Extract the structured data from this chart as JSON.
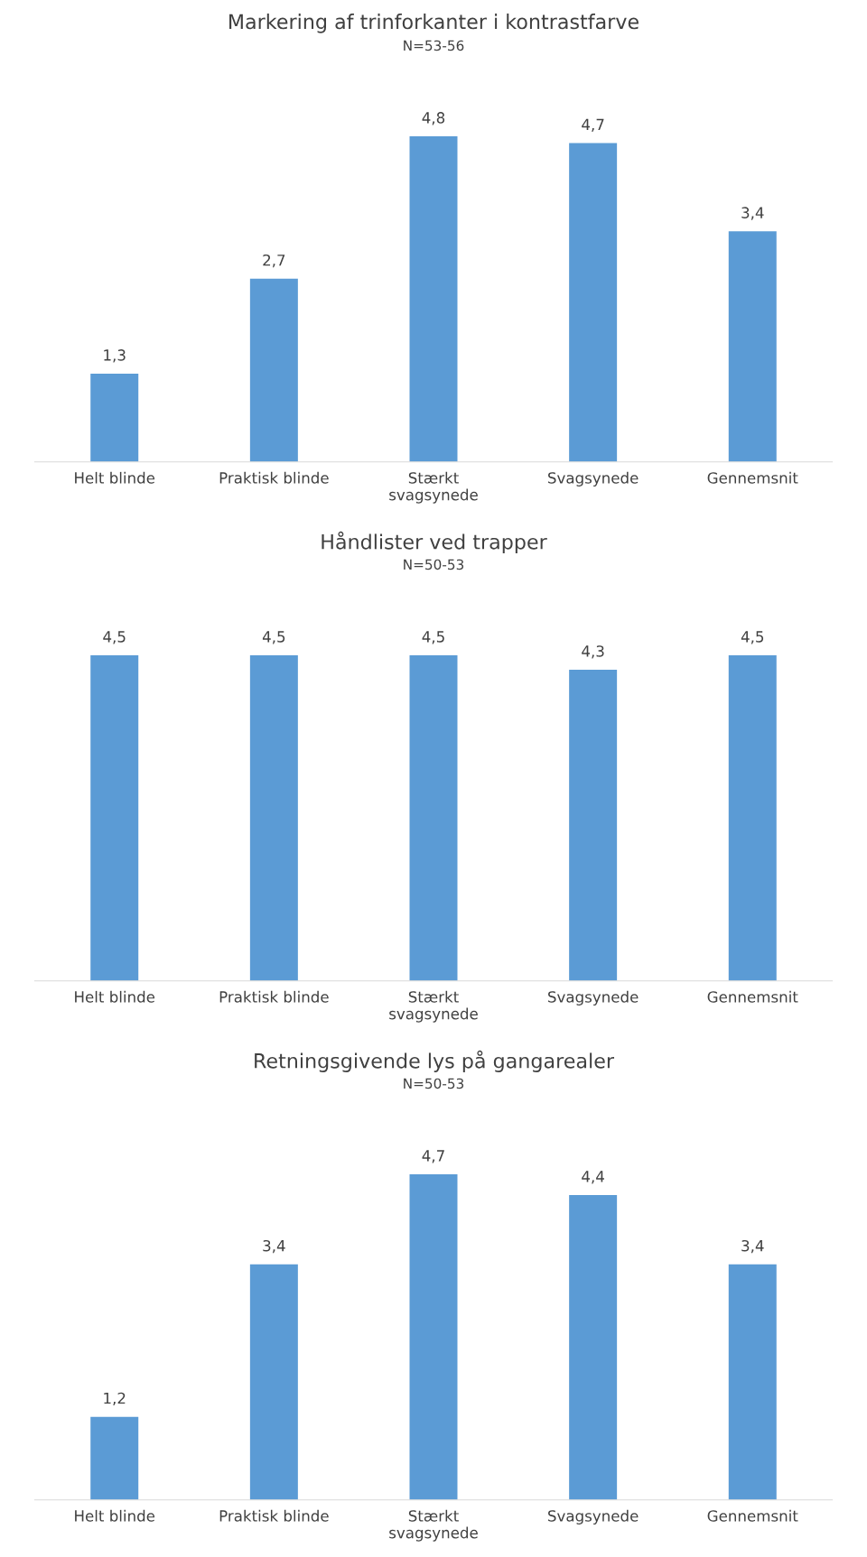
{
  "chart_data": [
    {
      "type": "bar",
      "title": "Markering af trinforkanter i kontrastfarve",
      "subtitle": "N=53-56",
      "categories": [
        "Helt blinde",
        "Praktisk blinde",
        "Stærkt\nsvagsynede",
        "Svagsynede",
        "Gennemsnit"
      ],
      "values": [
        1.3,
        2.7,
        4.8,
        4.7,
        3.4
      ],
      "value_labels": [
        "1,3",
        "2,7",
        "4,8",
        "4,7",
        "3,4"
      ],
      "color": "#5b9bd5",
      "grid": false,
      "legend": false
    },
    {
      "type": "bar",
      "title": "Håndlister ved trapper",
      "subtitle": "N=50-53",
      "categories": [
        "Helt blinde",
        "Praktisk blinde",
        "Stærkt\nsvagsynede",
        "Svagsynede",
        "Gennemsnit"
      ],
      "values": [
        4.5,
        4.5,
        4.5,
        4.3,
        4.5
      ],
      "value_labels": [
        "4,5",
        "4,5",
        "4,5",
        "4,3",
        "4,5"
      ],
      "color": "#5b9bd5",
      "grid": false,
      "legend": false
    },
    {
      "type": "bar",
      "title": "Retningsgivende lys på gangarealer",
      "subtitle": "N=50-53",
      "categories": [
        "Helt blinde",
        "Praktisk blinde",
        "Stærkt\nsvagsynede",
        "Svagsynede",
        "Gennemsnit"
      ],
      "values": [
        1.2,
        3.4,
        4.7,
        4.4,
        3.4
      ],
      "value_labels": [
        "1,2",
        "3,4",
        "4,7",
        "4,4",
        "3,4"
      ],
      "color": "#5b9bd5",
      "grid": false,
      "legend": false
    }
  ]
}
